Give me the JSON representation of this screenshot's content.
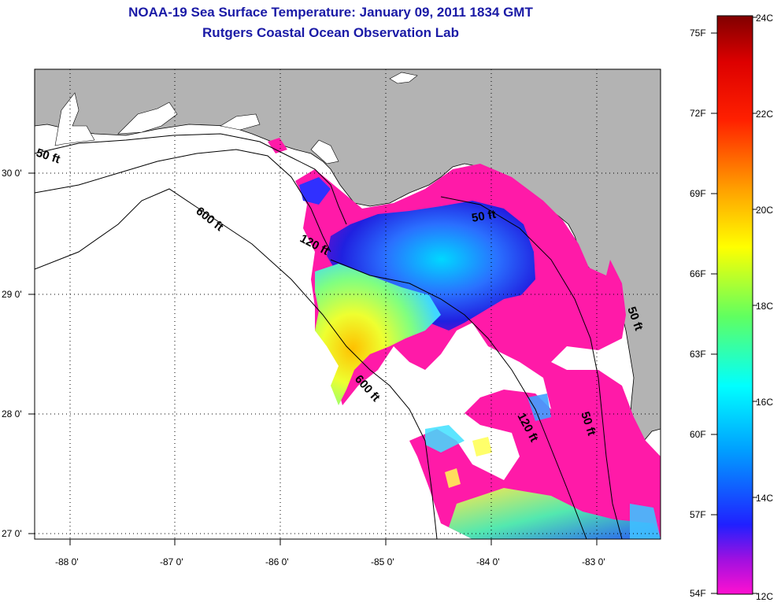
{
  "header": {
    "title": "NOAA-19 Sea Surface Temperature:  January 09, 2011 1834 GMT",
    "subtitle": "Rutgers Coastal Ocean Observation Lab"
  },
  "map": {
    "lat_labels": [
      "30 0'",
      "29 0'",
      "28 0'",
      "27 0'"
    ],
    "lon_labels": [
      "-88 0'",
      "-87 0'",
      "-86 0'",
      "-85 0'",
      "-84 0'",
      "-83 0'"
    ],
    "isobath_labels": {
      "a": "50 ft",
      "b": "600 ft",
      "c": "120 ft",
      "d": "50 ft",
      "e": "600 ft",
      "f": "120 ft",
      "g": "50 ft",
      "h": "50 ft"
    },
    "colors": {
      "land": "#b3b3b3",
      "ocean_nodata": "#ffffff",
      "low_sst": "#ff1aa8"
    }
  },
  "colorbar": {
    "fahrenheit": [
      "75F",
      "72F",
      "69F",
      "66F",
      "63F",
      "60F",
      "57F",
      "54F"
    ],
    "celsius": [
      "24C",
      "22C",
      "20C",
      "18C",
      "16C",
      "14C",
      "12C"
    ],
    "range_c": [
      12,
      24
    ]
  }
}
